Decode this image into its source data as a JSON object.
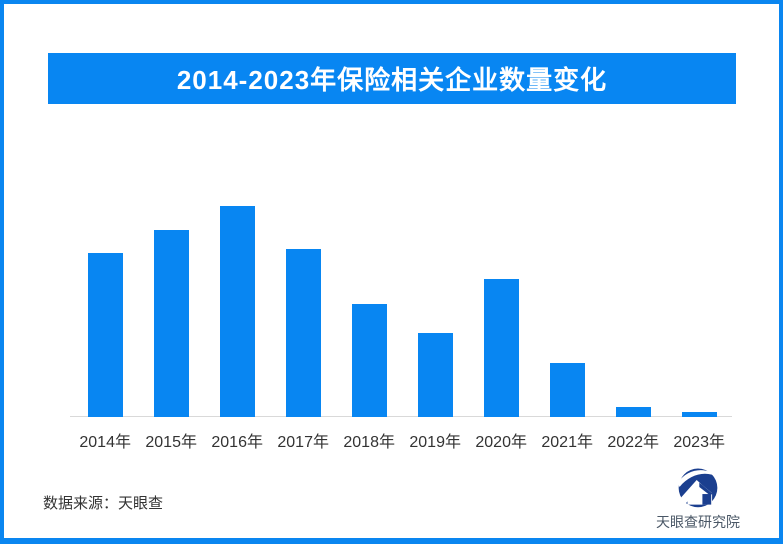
{
  "title_banner": {
    "text": "2014-2023年保险相关企业数量变化",
    "bg_color": "#0886f2",
    "text_color": "#ffffff"
  },
  "chart_data": {
    "type": "bar",
    "title": "2014-2023年保险相关企业数量变化",
    "categories": [
      "2014年",
      "2015年",
      "2016年",
      "2017年",
      "2018年",
      "2019年",
      "2020年",
      "2021年",
      "2022年",
      "2023年"
    ],
    "values": [
      77.7,
      88.6,
      100,
      79.6,
      53.6,
      39.8,
      65.4,
      25.6,
      4.7,
      2.4
    ],
    "value_scale": "percent of tallest bar (chart shows no numeric y-axis labels or gridlines)",
    "xlabel": "",
    "ylabel": "",
    "grid": false,
    "legend": false,
    "bar_color": "#0886f2",
    "axis_line_color": "#d9d9d9",
    "tick_label_color": "#333333"
  },
  "footer": {
    "source_text": "数据来源：天眼查",
    "logo_text": "天眼查研究院",
    "logo_color": "#1b3f8f"
  }
}
